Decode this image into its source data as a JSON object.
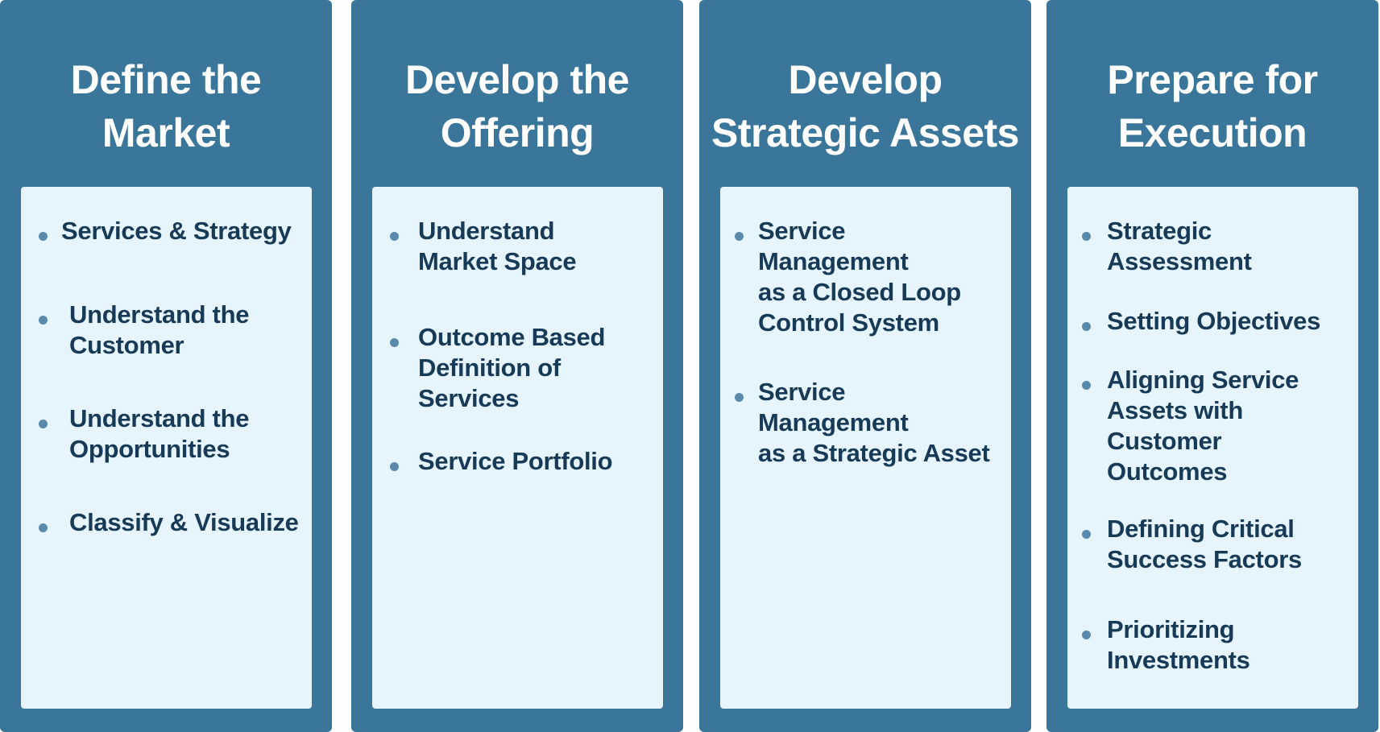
{
  "columns": [
    {
      "title_lines": [
        "Define the",
        "Market"
      ],
      "items": [
        {
          "lines": [
            "Services & Strategy"
          ]
        },
        {
          "lines": [
            "Understand the",
            "Customer"
          ]
        },
        {
          "lines": [
            "Understand the",
            "Opportunities"
          ]
        },
        {
          "lines": [
            "Classify & Visualize"
          ]
        }
      ]
    },
    {
      "title_lines": [
        "Develop the",
        "Offering"
      ],
      "items": [
        {
          "lines": [
            "Understand",
            "Market Space"
          ]
        },
        {
          "lines": [
            "Outcome Based",
            "Definition of",
            "Services"
          ]
        },
        {
          "lines": [
            "Service Portfolio"
          ]
        }
      ]
    },
    {
      "title_lines": [
        "Develop",
        "Strategic Assets"
      ],
      "items": [
        {
          "lines": [
            "Service",
            "Management",
            "as a Closed Loop",
            "Control System"
          ]
        },
        {
          "lines": [
            "Service",
            "Management",
            "as a Strategic Asset"
          ]
        }
      ]
    },
    {
      "title_lines": [
        "Prepare for",
        "Execution"
      ],
      "items": [
        {
          "lines": [
            "Strategic",
            "Assessment"
          ]
        },
        {
          "lines": [
            "Setting Objectives"
          ]
        },
        {
          "lines": [
            "Aligning Service",
            "Assets with",
            "Customer",
            "Outcomes"
          ]
        },
        {
          "lines": [
            "Defining Critical",
            "Success Factors"
          ]
        },
        {
          "lines": [
            "Prioritizing",
            "Investments"
          ]
        }
      ]
    }
  ],
  "colors": {
    "column_background": "#3a7699",
    "panel_background": "#e6f4fc",
    "item_text": "#173a57",
    "title_text": "#ffffff",
    "bullet": "#5a8aab"
  }
}
